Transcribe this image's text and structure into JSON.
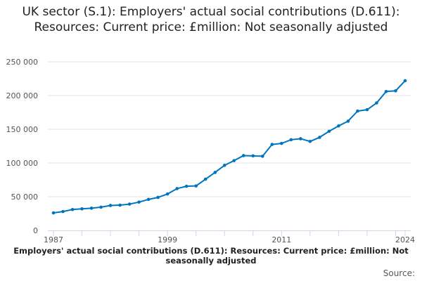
{
  "chart_data": {
    "type": "line",
    "title": "UK sector (S.1): Employers' actual social contributions (D.611): Resources: Current price: £million: Not seasonally adjusted",
    "xlabel": "",
    "ylabel": "",
    "x": [
      1987,
      1988,
      1989,
      1990,
      1991,
      1992,
      1993,
      1994,
      1995,
      1996,
      1997,
      1998,
      1999,
      2000,
      2001,
      2002,
      2003,
      2004,
      2005,
      2006,
      2007,
      2008,
      2009,
      2010,
      2011,
      2012,
      2013,
      2014,
      2015,
      2016,
      2017,
      2018,
      2019,
      2020,
      2021,
      2022,
      2023,
      2024
    ],
    "series": [
      {
        "name": "Employers' actual social contributions (D.611)",
        "color": "#0075bf",
        "values": [
          26000,
          28000,
          31000,
          32000,
          33000,
          34500,
          37000,
          37500,
          39000,
          42000,
          46000,
          49000,
          54000,
          62000,
          65500,
          66000,
          76000,
          86000,
          96500,
          103500,
          111000,
          110500,
          110000,
          127500,
          129000,
          134500,
          136000,
          132000,
          138000,
          147000,
          155000,
          162000,
          177000,
          179000,
          189000,
          206000,
          207000,
          222000
        ]
      }
    ],
    "ylim": [
      0,
      250000
    ],
    "yticks": [
      0,
      50000,
      100000,
      150000,
      200000,
      250000
    ],
    "ytick_labels": [
      "0",
      "50 000",
      "100 000",
      "150 000",
      "200 000",
      "250 000"
    ],
    "xtick_labels": [
      {
        "year": 1987,
        "label": "1987"
      },
      {
        "year": 1999,
        "label": "1999"
      },
      {
        "year": 2011,
        "label": "2011"
      },
      {
        "year": 2024,
        "label": "2024"
      }
    ],
    "grid": true,
    "legend": "none"
  },
  "caption": "Employers' actual social contributions (D.611): Resources: Current price: £million: Not seasonally adjusted",
  "source_label": "Source:"
}
